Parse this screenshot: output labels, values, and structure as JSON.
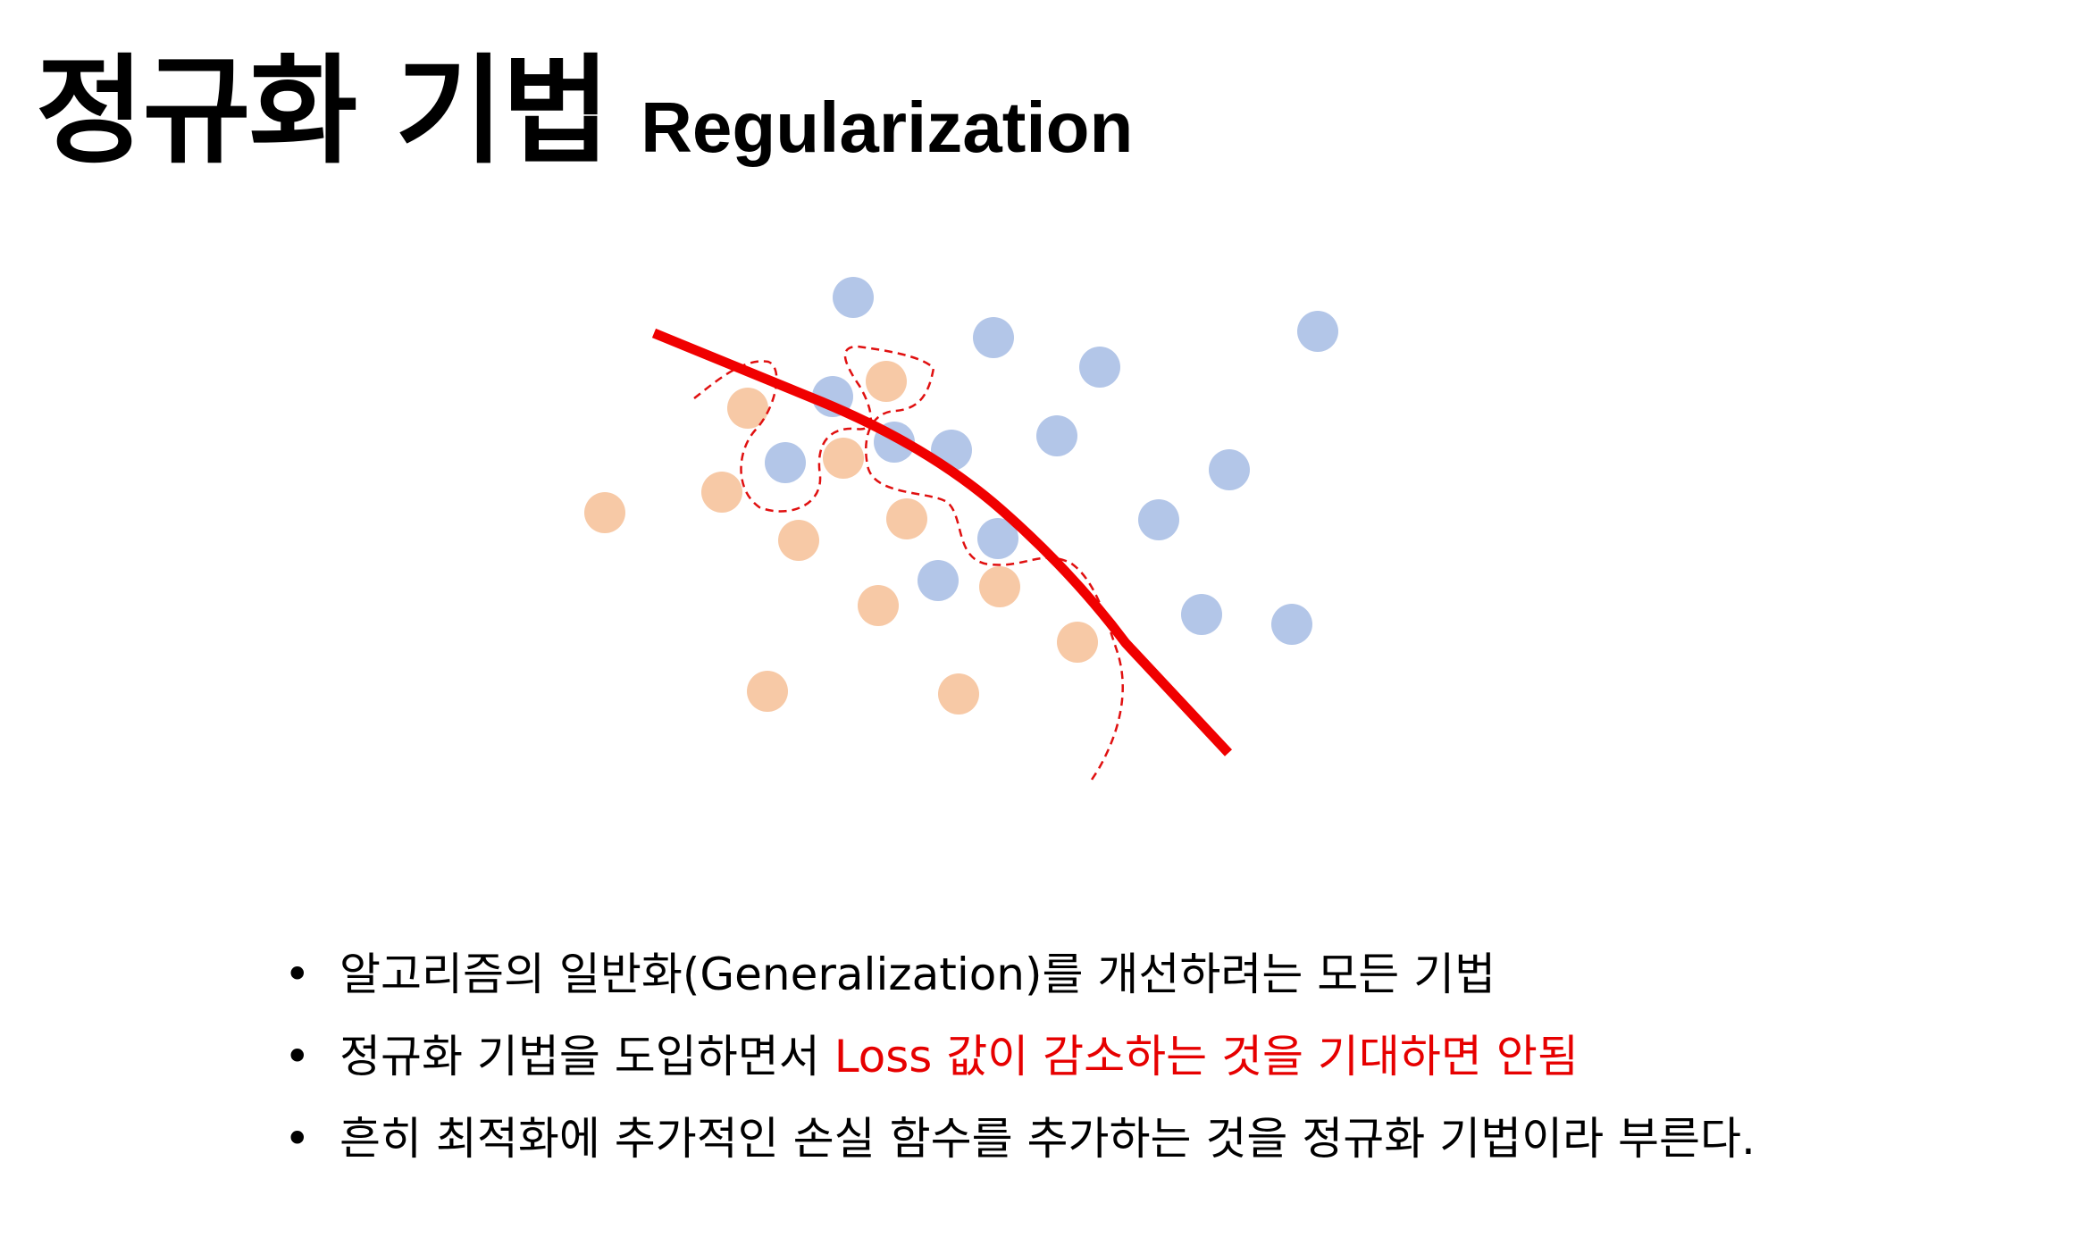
{
  "slide": {
    "title_ko": "정규화 기법",
    "title_en": "Regularization"
  },
  "diagram": {
    "colors": {
      "class_a": "#b3c6e8",
      "class_b": "#f7c9a6",
      "boundary": "#f00000",
      "overfit_boundary": "#e01010"
    }
  },
  "bullets": {
    "marker": "•",
    "items": [
      {
        "text": "알고리즘의 일반화(Generalization)를 개선하려는 모든 기법",
        "highlight": ""
      },
      {
        "text": "정규화 기법을 도입하면서 ",
        "highlight": "Loss 값이 감소하는 것을 기대하면 안됨"
      },
      {
        "text": "흔히 최적화에 추가적인 손실 함수를 추가하는 것을 정규화 기법이라 부른다.",
        "highlight": ""
      }
    ]
  }
}
